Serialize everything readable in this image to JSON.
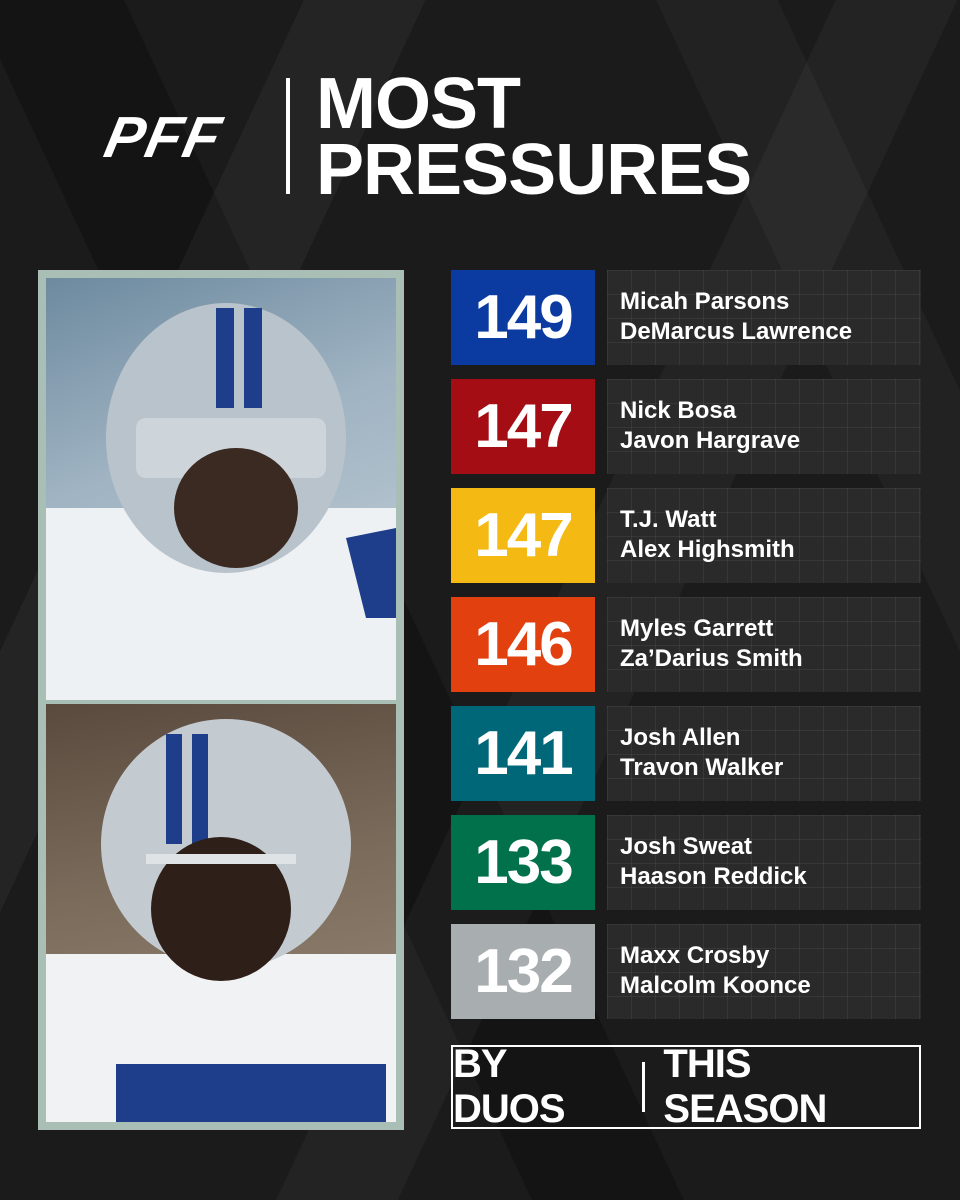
{
  "logo": "PFF",
  "title": [
    "MOST",
    "PRESSURES"
  ],
  "rows": [
    {
      "value": 149,
      "players": [
        "Micah Parsons",
        "DeMarcus Lawrence"
      ],
      "color": "#0b3aa0"
    },
    {
      "value": 147,
      "players": [
        "Nick Bosa",
        "Javon Hargrave"
      ],
      "color": "#a50d14"
    },
    {
      "value": 147,
      "players": [
        "T.J. Watt",
        "Alex Highsmith"
      ],
      "color": "#f5b913"
    },
    {
      "value": 146,
      "players": [
        "Myles Garrett",
        "Za’Darius Smith"
      ],
      "color": "#e2400e"
    },
    {
      "value": 141,
      "players": [
        "Josh Allen",
        "Travon Walker"
      ],
      "color": "#006778"
    },
    {
      "value": 133,
      "players": [
        "Josh Sweat",
        "Haason Reddick"
      ],
      "color": "#00714a"
    },
    {
      "value": 132,
      "players": [
        "Maxx Crosby",
        "Malcolm Koonce"
      ],
      "color": "#a8adb0"
    }
  ],
  "footer": [
    "BY DUOS",
    "THIS SEASON"
  ]
}
